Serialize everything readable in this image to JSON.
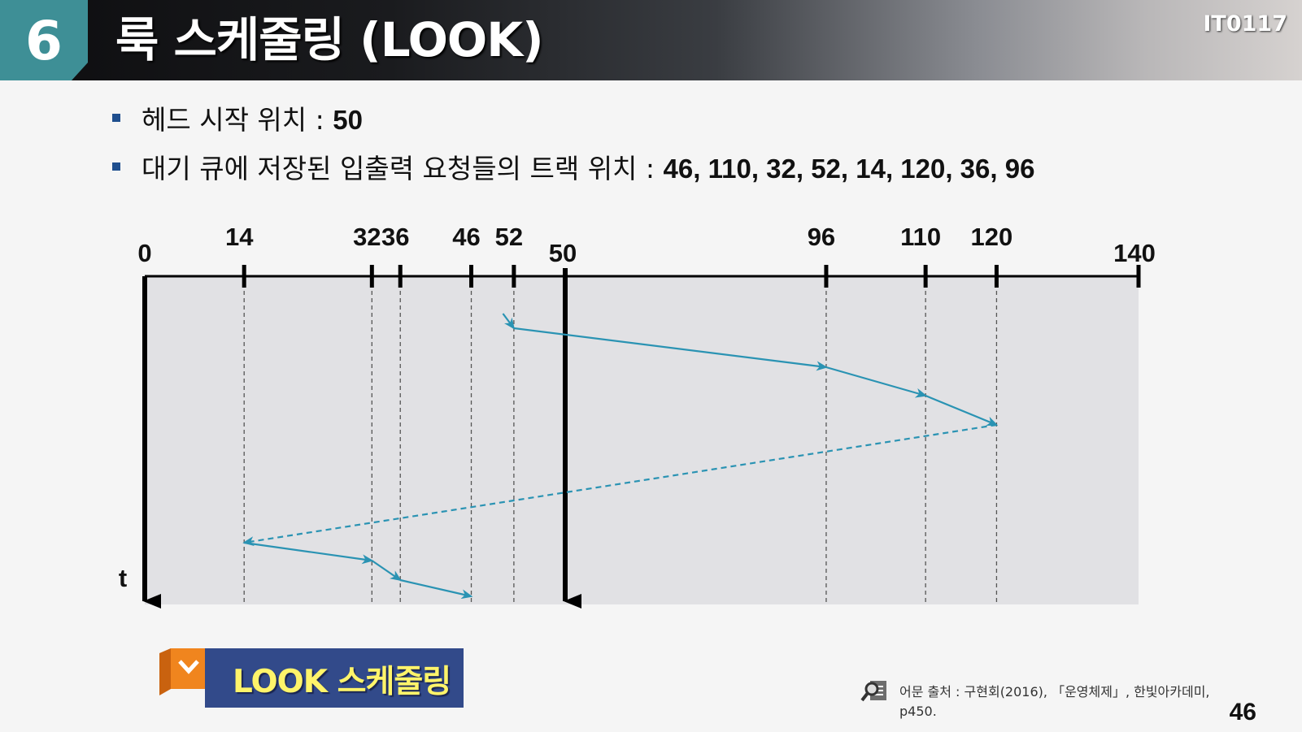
{
  "header": {
    "chapter_number": "6",
    "title": "룩 스케줄링 (LOOK)",
    "code": "IT0117"
  },
  "bullets": [
    {
      "label": "헤드 시작 위치 : ",
      "value": "50"
    },
    {
      "label": "대기 큐에 저장된 입출력 요청들의 트랙 위치 : ",
      "value": "46, 110, 32, 52, 14, 120, 36, 96"
    }
  ],
  "diagram": {
    "start_label": "0",
    "end_label": "140",
    "head_label": "50",
    "time_label": "t",
    "ticks": [
      "14",
      "32",
      "36",
      "46",
      "52",
      "96",
      "110",
      "120"
    ],
    "track_max": 140,
    "head_start": 50,
    "service_order": [
      52,
      96,
      110,
      120,
      14,
      32,
      36,
      46
    ],
    "reversal_segment": {
      "from": 120,
      "to": 14,
      "style": "dashed"
    },
    "colors": {
      "arrow": "#2a93b3",
      "panel": "#e1e1e4",
      "axis": "#000000"
    }
  },
  "banner": {
    "label": "LOOK 스케줄링"
  },
  "source": {
    "line1": "어문 출처  : 구현회(2016), 「운영체제」, 한빛아카데미,",
    "line2": "p450."
  },
  "page_number": "46"
}
